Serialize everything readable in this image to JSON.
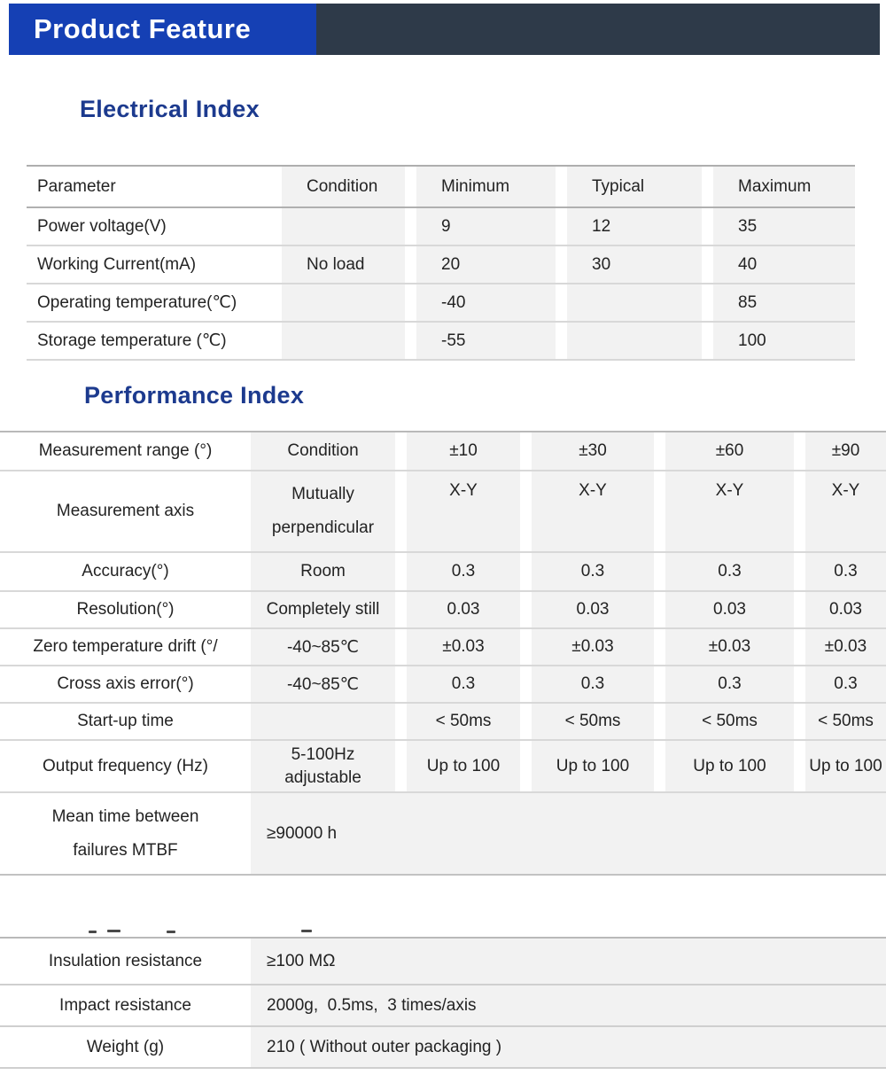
{
  "banner": {
    "title": "Product Feature"
  },
  "colors": {
    "banner_blue": "#1540b4",
    "banner_dark": "#2e3a49",
    "section_title_navy": "#1c3a8e",
    "cell_gray": "#f2f2f2",
    "text": "#232323"
  },
  "electrical": {
    "title": "Electrical Index",
    "headers": [
      "Parameter",
      "Condition",
      "Minimum",
      "Typical",
      "Maximum"
    ],
    "rows": [
      [
        "Power voltage(V)",
        "",
        "9",
        "12",
        "35"
      ],
      [
        "Working Current(mA)",
        "No load",
        "20",
        "30",
        "40"
      ],
      [
        "Operating temperature(℃)",
        "",
        "-40",
        "",
        "85"
      ],
      [
        "Storage temperature (℃)",
        "",
        "-55",
        "",
        "100"
      ]
    ]
  },
  "performance": {
    "title": "Performance Index",
    "rows": [
      {
        "label": "Measurement range (°)",
        "condition": "Condition",
        "values": [
          "±10",
          "±30",
          "±60",
          "±90"
        ]
      },
      {
        "label": "Measurement axis",
        "condition": "Mutually\nperpendicular",
        "values": [
          "X-Y",
          "X-Y",
          "X-Y",
          "X-Y"
        ]
      },
      {
        "label": "Accuracy(°)",
        "condition": "Room",
        "values": [
          "0.3",
          "0.3",
          "0.3",
          "0.3"
        ]
      },
      {
        "label": "Resolution(°)",
        "condition": "Completely still",
        "values": [
          "0.03",
          "0.03",
          "0.03",
          "0.03"
        ]
      },
      {
        "label": "Zero temperature drift (°/",
        "condition": "-40~85℃",
        "values": [
          "±0.03",
          "±0.03",
          "±0.03",
          "±0.03"
        ]
      },
      {
        "label": "Cross axis error(°)",
        "condition": "-40~85℃",
        "values": [
          "0.3",
          "0.3",
          "0.3",
          "0.3"
        ]
      },
      {
        "label": "Start-up time",
        "condition": "",
        "values": [
          "< 50ms",
          "< 50ms",
          "< 50ms",
          "< 50ms"
        ]
      },
      {
        "label": "Output frequency (Hz)",
        "condition": "5-100Hz\nadjustable",
        "values": [
          "Up to 100",
          "Up to 100",
          "Up to 100",
          "Up to 100"
        ]
      }
    ],
    "mtbf": {
      "label": "Mean time between\nfailures MTBF",
      "value": "≥90000 h"
    }
  },
  "other": {
    "rows": [
      {
        "label": "Insulation resistance",
        "value": "≥100 MΩ"
      },
      {
        "label": "Impact resistance",
        "value": "2000g,  0.5ms,  3 times/axis"
      },
      {
        "label": "Weight (g)",
        "value": "210 ( Without outer packaging )"
      }
    ]
  }
}
